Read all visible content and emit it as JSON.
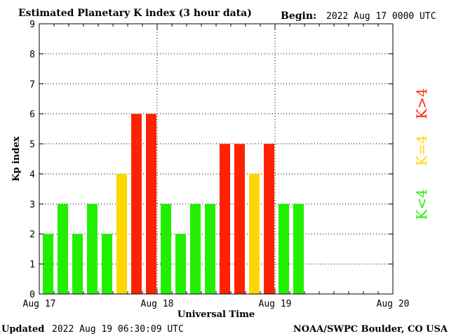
{
  "header": {
    "title": "Estimated Planetary K index (3 hour data)",
    "begin_label": "Begin:",
    "begin_value": "2022 Aug 17 0000 UTC"
  },
  "footer": {
    "updated_label": "Updated",
    "updated_value": "2022 Aug 19 06:30:09 UTC",
    "source": "NOAA/SWPC Boulder, CO USA"
  },
  "legend": [
    {
      "label": "K<4",
      "color": "#22ee00"
    },
    {
      "label": "K=4",
      "color": "#ffd700"
    },
    {
      "label": "K>4",
      "color": "#ff2200"
    }
  ],
  "chart_data": {
    "type": "bar",
    "title": "Estimated Planetary K index (3 hour data)",
    "xlabel": "Universal Time",
    "ylabel": "Kp index",
    "ylim": [
      0,
      9
    ],
    "yticks": [
      0,
      1,
      2,
      3,
      4,
      5,
      6,
      7,
      8,
      9
    ],
    "x_tick_labels": [
      "Aug 17",
      "Aug 18",
      "Aug 19",
      "Aug 20"
    ],
    "bars_per_day": 8,
    "days": 3,
    "grid": "dotted at each day boundary and each integer Kp",
    "values": [
      2,
      3,
      2,
      3,
      2,
      4,
      6,
      6,
      3,
      2,
      3,
      3,
      5,
      5,
      4,
      5,
      3,
      3
    ],
    "colors": {
      "below": "#22ee00",
      "equal": "#ffd700",
      "above": "#ff2200"
    }
  }
}
